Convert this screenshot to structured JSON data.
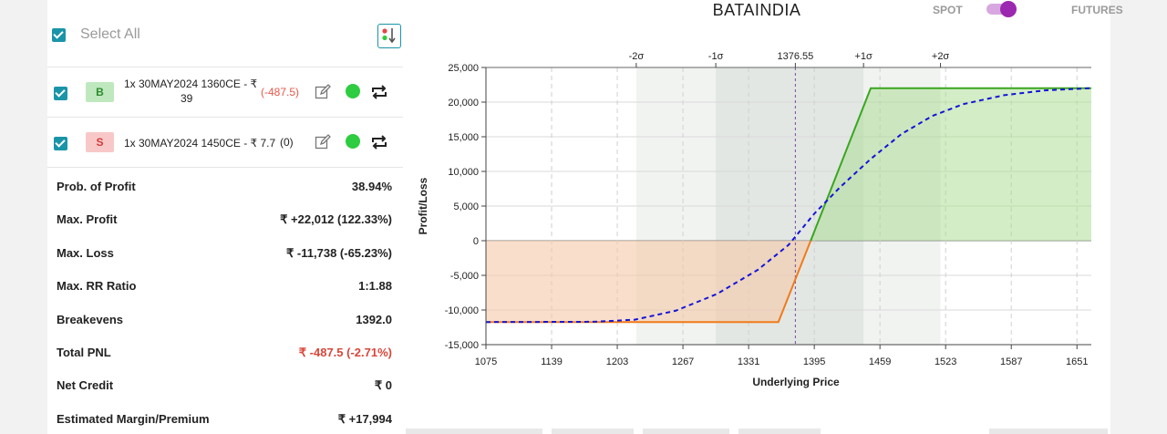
{
  "select_all": {
    "label": "Select All"
  },
  "legs": [
    {
      "side": "B",
      "text_line1": "1x 30MAY2024 1360CE - ₹",
      "text_line2": "39",
      "pnl": "(-487.5)",
      "pnl_color": "#e8574a"
    },
    {
      "side": "S",
      "text_line1": "1x 30MAY2024 1450CE - ₹ 7.7",
      "text_line2": "",
      "pnl": "(0)",
      "pnl_color": "#222222"
    }
  ],
  "stats": [
    {
      "label": "Prob. of Profit",
      "value": "38.94%",
      "negative": false
    },
    {
      "label": "Max. Profit",
      "value": "₹ +22,012 (122.33%)",
      "negative": false
    },
    {
      "label": "Max. Loss",
      "value": "₹ -11,738 (-65.23%)",
      "negative": false
    },
    {
      "label": "Max. RR Ratio",
      "value": "1:1.88",
      "negative": false
    },
    {
      "label": "Breakevens",
      "value": "1392.0",
      "negative": false
    },
    {
      "label": "Total PNL",
      "value": "₹ -487.5 (-2.71%)",
      "negative": true
    },
    {
      "label": "Net Credit",
      "value": "₹ 0",
      "negative": false
    },
    {
      "label": "Estimated Margin/Premium",
      "value": "₹ +17,994",
      "negative": false
    }
  ],
  "header": {
    "symbol": "BATAINDIA",
    "spot_label": "SPOT",
    "futures_label": "FUTURES",
    "mode": "FUTURES"
  },
  "colors": {
    "accent": "#1a94a8",
    "profit_line": "#3aa620",
    "loss_line": "#f07a1a",
    "expected_curve": "#1414d8",
    "toggle": "#9c27b0"
  },
  "chart_data": {
    "type": "area",
    "title": "",
    "xlabel": "Underlying Price",
    "ylabel": "Profit/Loss",
    "xlim": [
      1075,
      1665
    ],
    "ylim": [
      -15000,
      25000
    ],
    "x_ticks": [
      "1075",
      "1139",
      "1203",
      "1267",
      "1331",
      "1395",
      "1459",
      "1523",
      "1587",
      "1651"
    ],
    "y_ticks": [
      "25,000",
      "20,000",
      "15,000",
      "10,000",
      "5,000",
      "0",
      "-5,000",
      "-10,000",
      "-15,000"
    ],
    "top_axis": [
      {
        "label": "-2σ",
        "x": 1221.5
      },
      {
        "label": "-1σ",
        "x": 1299
      },
      {
        "label": "1376.55",
        "x": 1376.55
      },
      {
        "label": "+1σ",
        "x": 1443
      },
      {
        "label": "+2σ",
        "x": 1518
      }
    ],
    "sigma_bands": [
      {
        "name": "2σ",
        "from": 1221.5,
        "to": 1518
      },
      {
        "name": "1σ",
        "from": 1299,
        "to": 1443
      }
    ],
    "series": [
      {
        "values": [
          [
            1075,
            -11738
          ],
          [
            1360,
            -11738
          ],
          [
            1391.5,
            0
          ],
          [
            1450,
            22012
          ],
          [
            1665,
            22012
          ]
        ]
      },
      {
        "values": [
          [
            1075,
            -11738
          ],
          [
            1180,
            -11700
          ],
          [
            1220,
            -11400
          ],
          [
            1260,
            -10100
          ],
          [
            1300,
            -7700
          ],
          [
            1340,
            -4200
          ],
          [
            1370,
            -600
          ],
          [
            1395,
            3900
          ],
          [
            1420,
            7700
          ],
          [
            1450,
            11800
          ],
          [
            1480,
            15400
          ],
          [
            1510,
            18000
          ],
          [
            1540,
            19700
          ],
          [
            1580,
            21000
          ],
          [
            1620,
            21700
          ],
          [
            1665,
            22012
          ]
        ]
      }
    ]
  }
}
